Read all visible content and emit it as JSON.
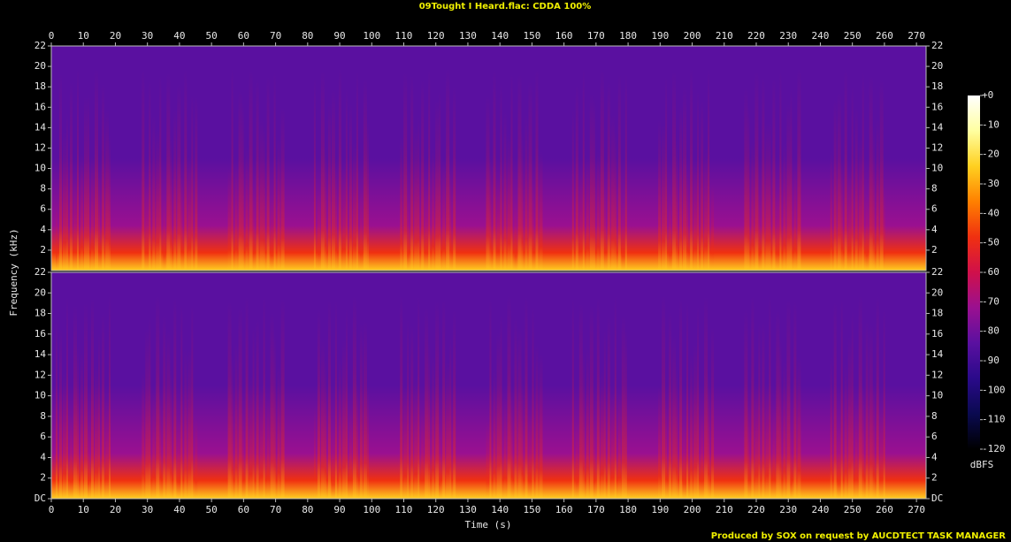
{
  "chart_data": {
    "type": "spectrogram",
    "title": "09Tought I Heard.flac: CDDA 100%",
    "xlabel": "Time (s)",
    "ylabel": "Frequency (kHz)",
    "footer": "Produced by SOX on request by AUCDTECT TASK MANAGER",
    "xlim": [
      0,
      273
    ],
    "xticks": [
      0,
      10,
      20,
      30,
      40,
      50,
      60,
      70,
      80,
      90,
      100,
      110,
      120,
      130,
      140,
      150,
      160,
      170,
      180,
      190,
      200,
      210,
      220,
      230,
      240,
      250,
      260,
      270
    ],
    "channels": [
      {
        "ylim": [
          0,
          22
        ],
        "yticks": [
          2,
          4,
          6,
          8,
          10,
          12,
          14,
          16,
          18,
          20,
          22
        ]
      },
      {
        "ylim": [
          0,
          22
        ],
        "yticks": [
          {
            "value": 0,
            "label": "DC"
          },
          2,
          4,
          6,
          8,
          10,
          12,
          14,
          16,
          18,
          20,
          22
        ]
      }
    ],
    "colorbar": {
      "label": "dBFS",
      "lim": [
        -120,
        0
      ],
      "ticks": [
        {
          "value": 0,
          "label": "+0"
        },
        -10,
        -20,
        -30,
        -40,
        -50,
        -60,
        -70,
        -80,
        -90,
        -100,
        -110,
        -120
      ],
      "colors": [
        "#000000",
        "#0a0a50",
        "#2a0a8a",
        "#5a10a0",
        "#9a1090",
        "#d0104a",
        "#f03010",
        "#ff8000",
        "#ffd020",
        "#ffffa0",
        "#ffffff"
      ]
    }
  }
}
